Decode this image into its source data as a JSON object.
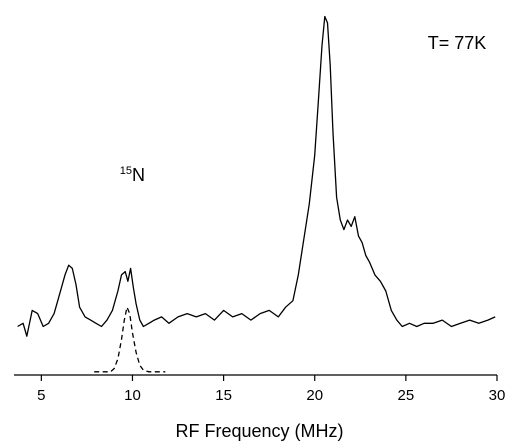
{
  "chart_data": {
    "type": "line",
    "title": "",
    "xlabel": "RF Frequency (MHz)",
    "ylabel": "",
    "xlim": [
      3.5,
      30
    ],
    "ylim": [
      -0.13,
      1.0
    ],
    "xticks": [
      5,
      10,
      15,
      20,
      25,
      30
    ],
    "yaxis_visible": false,
    "grid": false,
    "annotations": [
      {
        "text": "T= 77K",
        "x": 26.2,
        "y": 0.88
      },
      {
        "isotope_mass": "15",
        "element": "N",
        "x": 9.3,
        "y": 0.47
      }
    ],
    "series": [
      {
        "style": "solid",
        "x": [
          3.7,
          4.0,
          4.2,
          4.5,
          4.8,
          5.1,
          5.4,
          5.7,
          6.0,
          6.3,
          6.5,
          6.7,
          6.9,
          7.1,
          7.4,
          7.7,
          8.0,
          8.3,
          8.6,
          8.9,
          9.2,
          9.4,
          9.6,
          9.75,
          9.9,
          10.05,
          10.2,
          10.4,
          10.6,
          10.9,
          11.2,
          11.6,
          12.0,
          12.5,
          13.0,
          13.5,
          14.0,
          14.5,
          15.0,
          15.5,
          16.0,
          16.5,
          17.0,
          17.5,
          18.0,
          18.4,
          18.8,
          19.1,
          19.4,
          19.7,
          20.0,
          20.2,
          20.4,
          20.55,
          20.7,
          20.85,
          21.0,
          21.2,
          21.4,
          21.6,
          21.8,
          22.0,
          22.2,
          22.4,
          22.6,
          22.8,
          23.0,
          23.3,
          23.6,
          23.9,
          24.2,
          24.5,
          24.8,
          25.2,
          25.6,
          26.0,
          26.5,
          27.0,
          27.5,
          28.0,
          28.5,
          29.0,
          29.5,
          29.9
        ],
        "y": [
          0.02,
          0.03,
          -0.01,
          0.07,
          0.06,
          0.02,
          0.03,
          0.06,
          0.12,
          0.18,
          0.21,
          0.2,
          0.15,
          0.08,
          0.05,
          0.04,
          0.03,
          0.02,
          0.04,
          0.07,
          0.13,
          0.18,
          0.19,
          0.16,
          0.2,
          0.14,
          0.09,
          0.04,
          0.02,
          0.03,
          0.04,
          0.05,
          0.03,
          0.05,
          0.06,
          0.05,
          0.06,
          0.04,
          0.07,
          0.05,
          0.06,
          0.04,
          0.06,
          0.07,
          0.05,
          0.08,
          0.1,
          0.18,
          0.29,
          0.4,
          0.55,
          0.72,
          0.89,
          0.98,
          0.96,
          0.83,
          0.62,
          0.42,
          0.35,
          0.32,
          0.35,
          0.33,
          0.36,
          0.3,
          0.28,
          0.24,
          0.22,
          0.18,
          0.16,
          0.13,
          0.07,
          0.04,
          0.02,
          0.03,
          0.02,
          0.03,
          0.03,
          0.04,
          0.02,
          0.03,
          0.04,
          0.03,
          0.04,
          0.05
        ]
      },
      {
        "style": "dashed",
        "x": [
          7.9,
          8.4,
          8.8,
          9.0,
          9.2,
          9.4,
          9.55,
          9.7,
          9.85,
          10.0,
          10.2,
          10.4,
          10.6,
          10.9,
          11.3,
          11.8
        ],
        "y": [
          -0.12,
          -0.12,
          -0.12,
          -0.11,
          -0.08,
          -0.02,
          0.04,
          0.08,
          0.06,
          0.0,
          -0.06,
          -0.1,
          -0.115,
          -0.12,
          -0.12,
          -0.12
        ]
      }
    ]
  }
}
